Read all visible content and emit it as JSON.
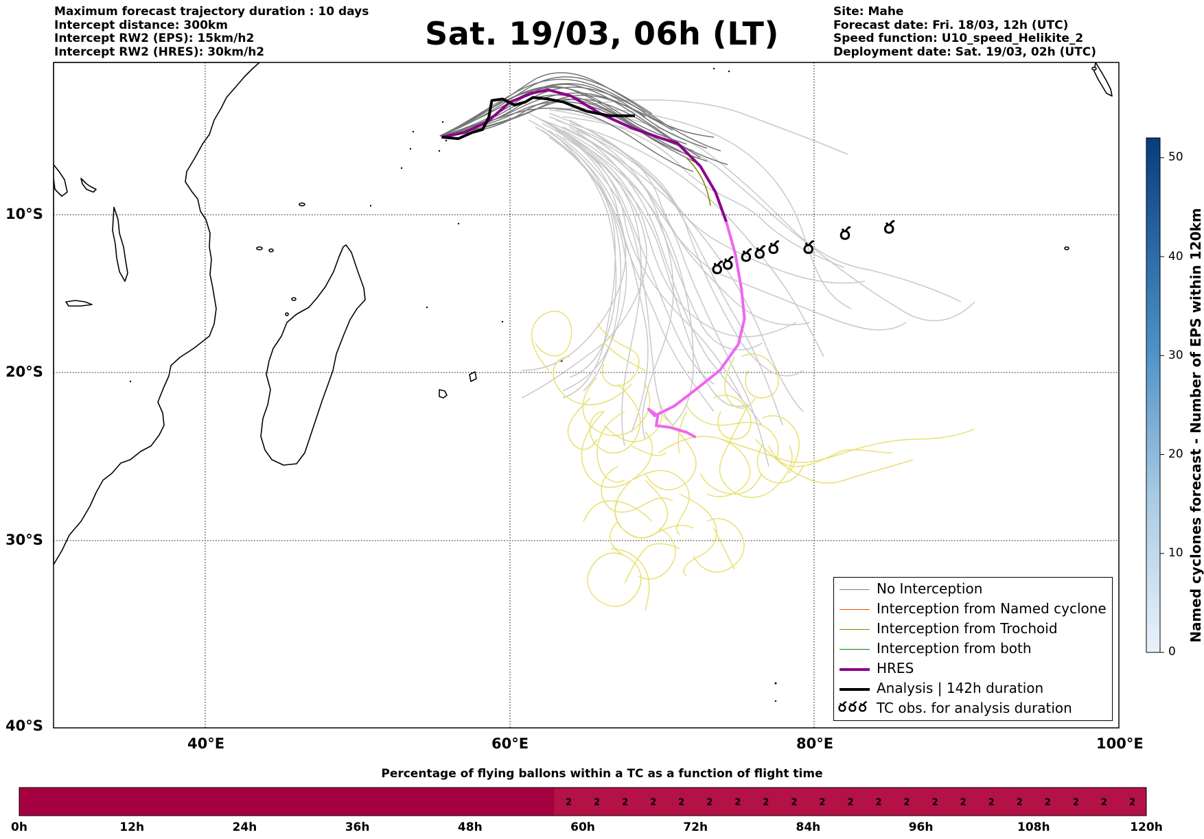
{
  "header": {
    "left": [
      "Maximum forecast trajectory duration : 10 days",
      "Intercept distance: 300km",
      "Intercept RW2 (EPS):  15km/h2",
      "Intercept RW2 (HRES): 30km/h2"
    ],
    "right": [
      "Site: Mahe",
      "Forecast date: Fri. 18/03, 12h (UTC)",
      "Speed function: U10_speed_Helikite_2",
      "Deployment date: Sat. 19/03, 02h (UTC)"
    ],
    "title": "Sat. 19/03, 06h (LT)"
  },
  "map": {
    "lon_range": [
      30,
      100
    ],
    "lat_range": [
      -40,
      0
    ],
    "lat_ticks": [
      {
        "value": -10,
        "label": "10°S"
      },
      {
        "value": -20,
        "label": "20°S"
      },
      {
        "value": -30,
        "label": "30°S"
      },
      {
        "value": -40,
        "label": "40°S"
      }
    ],
    "lon_ticks": [
      {
        "value": 40,
        "label": "40°E"
      },
      {
        "value": 60,
        "label": "60°E"
      },
      {
        "value": 80,
        "label": "80°E"
      },
      {
        "value": 100,
        "label": "100°E"
      }
    ],
    "colors": {
      "eps_no_intercept_dark": "#555555",
      "eps_no_intercept_light": "#c8c8c8",
      "named_cyclone": "#ff4500",
      "trochoid": "#808000",
      "both": "#008000",
      "hres": "#8b008b",
      "hres_late": "#ee66ee",
      "analysis": "#000000",
      "tc_trochoid": "#e8e070"
    },
    "hres_track": [
      [
        55.5,
        -4.9
      ],
      [
        57,
        -4.6
      ],
      [
        58.5,
        -3.9
      ],
      [
        60,
        -2.6
      ],
      [
        61.5,
        -2.0
      ],
      [
        62.5,
        -1.8
      ],
      [
        64,
        -2.2
      ],
      [
        66,
        -3.4
      ],
      [
        68,
        -4.3
      ],
      [
        70,
        -5.0
      ],
      [
        71,
        -5.3
      ],
      [
        72.5,
        -6.8
      ],
      [
        73.5,
        -8.5
      ],
      [
        74.2,
        -10.4
      ],
      [
        74.8,
        -12.5
      ],
      [
        75.2,
        -14.7
      ],
      [
        75.4,
        -16.6
      ],
      [
        75.0,
        -18.2
      ],
      [
        73.8,
        -19.8
      ],
      [
        72.2,
        -21.0
      ],
      [
        70.8,
        -22.0
      ],
      [
        69.5,
        -22.6
      ],
      [
        69.1,
        -22.2
      ],
      [
        69.7,
        -22.6
      ],
      [
        69.6,
        -23.2
      ],
      [
        70.5,
        -23.3
      ],
      [
        71.6,
        -23.6
      ],
      [
        72.2,
        -23.9
      ]
    ],
    "hres_split_index": 13,
    "analysis_track": [
      [
        55.5,
        -4.9
      ],
      [
        56.6,
        -5.0
      ],
      [
        57.5,
        -4.6
      ],
      [
        58.2,
        -4.4
      ],
      [
        58.6,
        -3.6
      ],
      [
        58.8,
        -2.5
      ],
      [
        59.5,
        -2.4
      ],
      [
        60.3,
        -2.8
      ],
      [
        61,
        -2.6
      ],
      [
        61.5,
        -2.3
      ],
      [
        62.5,
        -2.4
      ],
      [
        63.5,
        -2.6
      ],
      [
        65,
        -3.2
      ],
      [
        66.5,
        -3.5
      ],
      [
        68.2,
        -3.5
      ]
    ],
    "tc_obs": [
      [
        73.6,
        -13.4
      ],
      [
        74.3,
        -13.1
      ],
      [
        75.5,
        -12.6
      ],
      [
        76.4,
        -12.4
      ],
      [
        77.3,
        -12.1
      ],
      [
        79.6,
        -12.1
      ],
      [
        82.0,
        -11.2
      ],
      [
        84.9,
        -10.8
      ]
    ],
    "tc_symbol": "ర"
  },
  "legend": {
    "items": [
      {
        "label": "No Interception",
        "color": "#808080",
        "width": 1.5
      },
      {
        "label": "Interception from Named cyclone",
        "color": "#ff4500",
        "width": 1.5
      },
      {
        "label": "Interception from Trochoid",
        "color": "#808000",
        "width": 1.5
      },
      {
        "label": "Interception from both",
        "color": "#008000",
        "width": 1.5
      },
      {
        "label": "HRES",
        "color": "#8b008b",
        "width": 4
      },
      {
        "label": "Analysis | 142h duration",
        "color": "#000000",
        "width": 4
      },
      {
        "label": "TC obs. for analysis duration",
        "symbol": "ర ర ర"
      }
    ]
  },
  "colorbar": {
    "label": "Named cyclones forecast - Number of EPS within 120km",
    "min": 0,
    "max": 52,
    "ticks": [
      "0",
      "10",
      "20",
      "30",
      "40",
      "50"
    ],
    "colors": [
      "#e8f0fa",
      "#084081"
    ]
  },
  "flight_bar": {
    "title": "Percentage of flying ballons within a TC as a function of flight time",
    "hours": [
      0,
      120
    ],
    "tick_labels": [
      "0h",
      "12h",
      "24h",
      "36h",
      "48h",
      "60h",
      "72h",
      "84h",
      "96h",
      "108h",
      "120h"
    ],
    "first_segment_end_h": 57,
    "first_segment_color": "#a50040",
    "second_segment_color": "#b41147",
    "value_start_h": 57,
    "value_step_h": 3,
    "value": "2",
    "value_count": 21
  }
}
